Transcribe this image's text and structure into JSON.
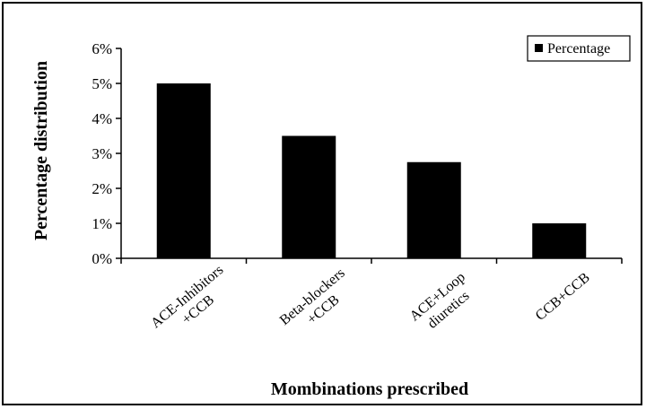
{
  "chart_data": {
    "type": "bar",
    "categories": [
      [
        "ACE-Inhibitors",
        "+CCB"
      ],
      [
        "Beta-blockers",
        "+CCB"
      ],
      [
        "ACE+Loop",
        "diuretics"
      ],
      [
        "CCB+CCB"
      ]
    ],
    "series": [
      {
        "name": "Percentage",
        "values": [
          5.0,
          3.5,
          2.75,
          1.0
        ],
        "color": "#000000"
      }
    ],
    "ylabel": "Percentage distribution",
    "xlabel": "Mombinations prescribed",
    "ylim": [
      0,
      6
    ],
    "yticks": [
      "0%",
      "1%",
      "2%",
      "3%",
      "4%",
      "5%",
      "6%"
    ],
    "grid": false,
    "legend": "top-right"
  }
}
